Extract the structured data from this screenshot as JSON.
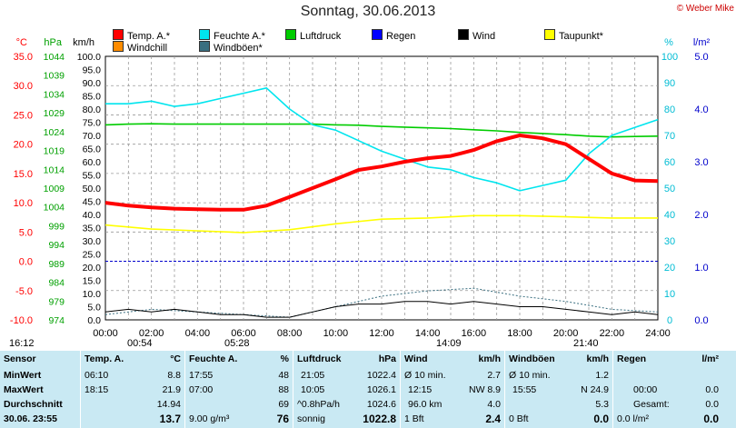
{
  "title": "Sonntag, 30.06.2013",
  "copyright": "© Weber Mike",
  "axes": {
    "temp_unit": "°C",
    "pressure_unit": "hPa",
    "wind_unit": "km/h",
    "humidity_unit": "%",
    "rain_unit": "l/m²",
    "temp_ticks": [
      "35.0",
      "30.0",
      "25.0",
      "20.0",
      "15.0",
      "10.0",
      "5.0",
      "0.0",
      "-5.0",
      "-10.0"
    ],
    "pressure_ticks": [
      "1044",
      "1039",
      "1034",
      "1029",
      "1024",
      "1019",
      "1014",
      "1009",
      "1004",
      "999",
      "994",
      "989",
      "984",
      "979",
      "974"
    ],
    "wind_ticks": [
      "100.0",
      "95.0",
      "90.0",
      "85.0",
      "80.0",
      "75.0",
      "70.0",
      "65.0",
      "60.0",
      "55.0",
      "50.0",
      "45.0",
      "40.0",
      "35.0",
      "30.0",
      "25.0",
      "20.0",
      "15.0",
      "10.0",
      "5.0",
      "0.0"
    ],
    "humidity_ticks": [
      "100",
      "90",
      "80",
      "70",
      "60",
      "50",
      "40",
      "30",
      "20",
      "10",
      "0"
    ],
    "rain_ticks": [
      "5.0",
      "4.0",
      "3.0",
      "2.0",
      "1.0",
      "0.0"
    ],
    "time_ticks": [
      "00:00",
      "02:00",
      "04:00",
      "06:00",
      "08:00",
      "10:00",
      "12:00",
      "14:00",
      "16:00",
      "18:00",
      "20:00",
      "22:00",
      "24:00"
    ]
  },
  "legend": [
    {
      "label": "Temp. A.*",
      "color": "#ff0000"
    },
    {
      "label": "Feuchte A.*",
      "color": "#00e5ee"
    },
    {
      "label": "Luftdruck",
      "color": "#00cc00"
    },
    {
      "label": "Regen",
      "color": "#0000ff"
    },
    {
      "label": "Wind",
      "color": "#000000"
    },
    {
      "label": "Taupunkt*",
      "color": "#ffff00"
    },
    {
      "label": "Windchill",
      "color": "#ff8c00"
    },
    {
      "label": "Windböen*",
      "color": "#3a6f80"
    }
  ],
  "markers": {
    "start": "16:12",
    "wind_max_time": "00:54",
    "sunrise": "05:28",
    "gust_max_time": "14:09",
    "sunset": "21:40"
  },
  "chart_data": {
    "type": "line",
    "x_unit": "hours",
    "x_range": [
      0,
      24
    ],
    "series": [
      {
        "name": "Temp. A.*",
        "axis": "°C",
        "color": "#ff0000",
        "x": [
          0,
          1,
          2,
          3,
          4,
          5,
          6,
          7,
          8,
          9,
          10,
          11,
          12,
          13,
          14,
          15,
          16,
          17,
          18,
          19,
          20,
          21,
          22,
          23,
          24
        ],
        "values": [
          10.0,
          9.5,
          9.2,
          9.0,
          8.9,
          8.8,
          8.8,
          9.5,
          11.0,
          12.5,
          14.0,
          15.6,
          16.2,
          17.0,
          17.6,
          18.0,
          19.0,
          20.5,
          21.5,
          21.0,
          20.0,
          17.5,
          15.0,
          13.8,
          13.7
        ]
      },
      {
        "name": "Feuchte A.*",
        "axis": "%",
        "color": "#00e5ee",
        "x": [
          0,
          1,
          2,
          3,
          4,
          5,
          6,
          7,
          8,
          9,
          10,
          11,
          12,
          13,
          14,
          15,
          16,
          17,
          18,
          19,
          20,
          21,
          22,
          23,
          24
        ],
        "values": [
          82,
          82,
          83,
          81,
          82,
          84,
          86,
          88,
          80,
          74,
          72,
          68,
          64,
          61,
          58,
          57,
          54,
          52,
          49,
          51,
          53,
          63,
          70,
          73,
          76
        ]
      },
      {
        "name": "Luftdruck",
        "axis": "hPa",
        "color": "#00cc00",
        "x": [
          0,
          1,
          2,
          3,
          4,
          5,
          6,
          7,
          8,
          9,
          10,
          11,
          12,
          13,
          14,
          15,
          16,
          17,
          18,
          19,
          20,
          21,
          22,
          23,
          24
        ],
        "values": [
          1025.8,
          1026.0,
          1026.1,
          1026.0,
          1026.0,
          1026.0,
          1026.0,
          1026.0,
          1026.0,
          1026.0,
          1025.8,
          1025.7,
          1025.4,
          1025.2,
          1025.0,
          1024.8,
          1024.5,
          1024.2,
          1023.8,
          1023.5,
          1023.2,
          1022.8,
          1022.6,
          1022.7,
          1022.8
        ]
      },
      {
        "name": "Taupunkt*",
        "axis": "°C",
        "color": "#ffff00",
        "x": [
          0,
          2,
          4,
          6,
          8,
          10,
          12,
          14,
          16,
          18,
          20,
          22,
          24
        ],
        "values": [
          6.2,
          5.5,
          5.2,
          4.9,
          5.4,
          6.4,
          7.2,
          7.4,
          7.8,
          7.8,
          7.6,
          7.4,
          7.4
        ]
      },
      {
        "name": "Wind",
        "axis": "km/h",
        "color": "#000000",
        "x": [
          0,
          1,
          2,
          3,
          4,
          5,
          6,
          7,
          8,
          9,
          10,
          11,
          12,
          13,
          14,
          15,
          16,
          17,
          18,
          19,
          20,
          21,
          22,
          23,
          24
        ],
        "values": [
          3,
          4,
          3,
          4,
          3,
          2,
          2,
          1,
          1,
          3,
          5,
          6,
          6,
          7,
          7,
          6,
          7,
          6,
          5,
          5,
          4,
          3,
          2,
          3,
          2
        ]
      },
      {
        "name": "Windböen*",
        "axis": "km/h",
        "color": "#3a6f80",
        "x": [
          0,
          2,
          4,
          6,
          8,
          10,
          12,
          14,
          16,
          18,
          20,
          22,
          24
        ],
        "values": [
          2,
          4,
          3,
          2,
          1,
          5,
          9,
          11,
          12,
          9,
          7,
          4,
          3
        ]
      }
    ]
  },
  "table": {
    "sensor": {
      "header": "Sensor",
      "rows": [
        "MinWert",
        "MaxWert",
        "Durchschnitt",
        "30.06.  23:55"
      ]
    },
    "temp": {
      "header": "Temp. A.",
      "unit": "°C",
      "rows": [
        [
          "06:10",
          "8.8"
        ],
        [
          "18:15",
          "21.9"
        ],
        [
          "",
          "14.94"
        ],
        [
          "",
          "13.7"
        ]
      ]
    },
    "humidity": {
      "header": "Feuchte A.",
      "unit": "%",
      "rows": [
        [
          "17:55",
          "48"
        ],
        [
          "07:00",
          "88"
        ],
        [
          "",
          "69"
        ],
        [
          "9.00 g/m³",
          "76"
        ]
      ]
    },
    "pressure": {
      "header": "Luftdruck",
      "unit": "hPa",
      "rows": [
        [
          "21:05",
          "1022.4"
        ],
        [
          "10:05",
          "1026.1"
        ],
        [
          "^0.8hPa/h",
          "1024.6"
        ],
        [
          "sonnig",
          "1022.8"
        ]
      ]
    },
    "wind": {
      "header": "Wind",
      "unit": "km/h",
      "rows": [
        [
          "Ø 10 min.",
          "2.7"
        ],
        [
          "12:15",
          "NW 8.9"
        ],
        [
          "96.0 km",
          "4.0"
        ],
        [
          "1 Bft",
          "2.4"
        ]
      ]
    },
    "gust": {
      "header": "Windböen",
      "unit": "km/h",
      "rows": [
        [
          "Ø 10 min.",
          "1.2"
        ],
        [
          "15:55",
          "N 24.9"
        ],
        [
          "",
          "5.3"
        ],
        [
          "0 Bft",
          "0.0"
        ]
      ]
    },
    "rain": {
      "header": "Regen",
      "unit": "l/m²",
      "rows": [
        [
          "",
          ""
        ],
        [
          "00:00",
          "0.0"
        ],
        [
          "Gesamt:",
          "0.0"
        ],
        [
          "0.0 l/m²",
          "0.0"
        ]
      ]
    }
  }
}
